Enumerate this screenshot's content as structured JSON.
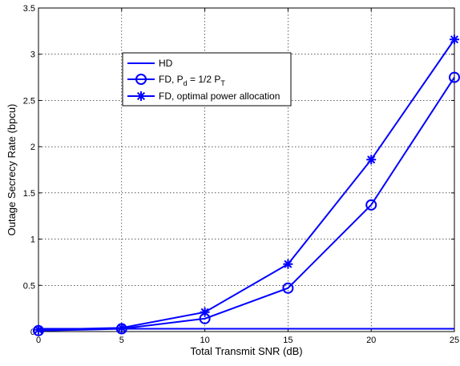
{
  "chart_data": {
    "type": "line",
    "xlabel": "Total Transmit SNR (dB)",
    "ylabel": "Outage Secrecy Rate (bpcu)",
    "xlim": [
      0,
      25
    ],
    "ylim": [
      0,
      3.5
    ],
    "xticks": [
      0,
      5,
      10,
      15,
      20,
      25
    ],
    "yticks": [
      0,
      0.5,
      1,
      1.5,
      2,
      2.5,
      3,
      3.5
    ],
    "grid": true,
    "legend_position": "upper-left",
    "x": [
      0,
      5,
      10,
      15,
      20,
      25
    ],
    "series": [
      {
        "name": "HD",
        "marker": "none",
        "color": "#0000ff",
        "values": [
          0.03,
          0.03,
          0.03,
          0.03,
          0.03,
          0.03
        ]
      },
      {
        "name_main": "FD, P",
        "name_sub1": "d",
        "name_mid": " = 1/2 P",
        "name_sub2": "T",
        "marker": "circle",
        "color": "#0000ff",
        "values": [
          0.01,
          0.03,
          0.14,
          0.47,
          1.37,
          2.75
        ]
      },
      {
        "name": "FD, optimal power allocation",
        "marker": "star",
        "color": "#0000ff",
        "values": [
          0.02,
          0.04,
          0.21,
          0.73,
          1.86,
          3.16
        ]
      }
    ]
  }
}
